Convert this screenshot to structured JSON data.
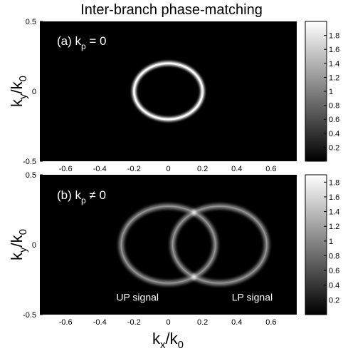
{
  "chart_data": {
    "type": "heatmap",
    "title": "Inter-branch phase-matching",
    "xlabel": {
      "main": "k",
      "sub": "x",
      "tail": "/k",
      "tail_sub": "0"
    },
    "ylabel": {
      "main": "k",
      "sub": "y",
      "tail": "/k",
      "tail_sub": "0"
    },
    "xlim": [
      -0.75,
      0.75
    ],
    "ylim": [
      -0.5,
      0.5
    ],
    "xticks": [
      -0.6,
      -0.4,
      -0.2,
      0,
      0.2,
      0.4,
      0.6
    ],
    "xtick_labels": [
      "-0.6",
      "-0.4",
      "-0.2",
      "0",
      "0.2",
      "0.4",
      "0.6"
    ],
    "yticks": [
      0.5,
      0,
      -0.5
    ],
    "ytick_labels": [
      "0.5",
      "0",
      "-0.5"
    ],
    "colormap": "gray",
    "panels": [
      {
        "label": {
          "prefix": "(a) k",
          "sub": "p",
          "suffix": " = 0"
        },
        "rings": [
          {
            "cx": 0,
            "cy": 0,
            "rx": 0.2,
            "ry": 0.2,
            "peak": 1.95
          }
        ],
        "colorbar": {
          "range": [
            0,
            2.0
          ],
          "ticks": [
            1.8,
            1.6,
            1.4,
            1.2,
            1,
            0.8,
            0.6,
            0.4,
            0.2
          ],
          "tick_labels": [
            "1.8",
            "1.6",
            "1.4",
            "1.2",
            "1",
            "0.8",
            "0.6",
            "0.4",
            "0.2"
          ]
        },
        "annotations": []
      },
      {
        "label": {
          "prefix": "(b) k",
          "sub": "p",
          "suffix": " ≠ 0"
        },
        "rings": [
          {
            "cx": 0,
            "cy": 0,
            "rx": 0.275,
            "ry": 0.275,
            "peak": 1.1
          },
          {
            "cx": 0.3,
            "cy": 0,
            "rx": 0.275,
            "ry": 0.275,
            "peak": 1.1
          }
        ],
        "crossings_peak": 1.85,
        "colorbar": {
          "range": [
            0,
            1.9
          ],
          "ticks": [
            1.8,
            1.6,
            1.4,
            1.2,
            1,
            0.8,
            0.6,
            0.4,
            0.2
          ],
          "tick_labels": [
            "1.8",
            "1.6",
            "1.4",
            "1.2",
            "1",
            "0.8",
            "0.6",
            "0.4",
            "0.2"
          ]
        },
        "annotations": [
          {
            "text": "UP signal",
            "x": -0.18,
            "y": -0.4
          },
          {
            "text": "LP signal",
            "x": 0.49,
            "y": -0.4
          }
        ]
      }
    ]
  }
}
